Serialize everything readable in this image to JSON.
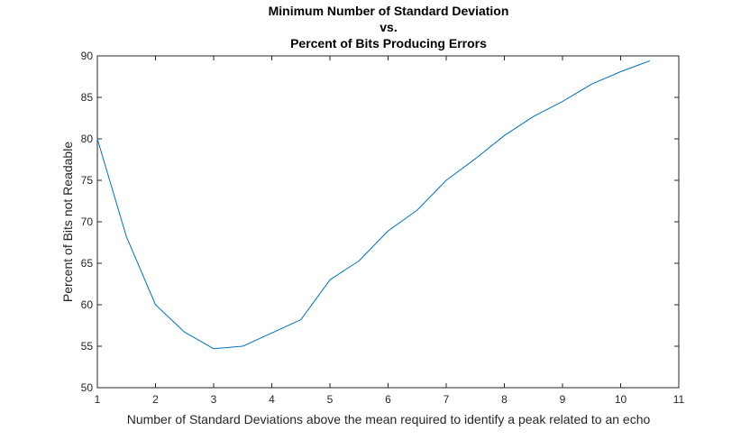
{
  "chart_data": {
    "type": "line",
    "title": [
      "Minimum Number of Standard Deviation",
      "vs.",
      "Percent of Bits Producing Errors"
    ],
    "xlabel": "Number of Standard Deviations above the mean required to identify a peak related to an echo",
    "ylabel": "Percent of Bits not Readable",
    "xlim": [
      1,
      11
    ],
    "ylim": [
      50,
      90
    ],
    "xticks": [
      1,
      2,
      3,
      4,
      5,
      6,
      7,
      8,
      9,
      10,
      11
    ],
    "yticks": [
      50,
      55,
      60,
      65,
      70,
      75,
      80,
      85,
      90
    ],
    "grid": false,
    "legend": "none",
    "series": [
      {
        "color": "#0072BD",
        "x": [
          1,
          1.5,
          2,
          2.5,
          3,
          3.5,
          4,
          4.5,
          5,
          5.5,
          6,
          6.5,
          7,
          7.5,
          8,
          8.5,
          9,
          9.5,
          10,
          10.5
        ],
        "y": [
          80.0,
          68.2,
          60.0,
          56.7,
          54.7,
          55.0,
          56.6,
          58.2,
          63.0,
          65.3,
          68.9,
          71.4,
          75.0,
          77.6,
          80.4,
          82.7,
          84.5,
          86.6,
          88.1,
          89.4
        ]
      }
    ]
  }
}
